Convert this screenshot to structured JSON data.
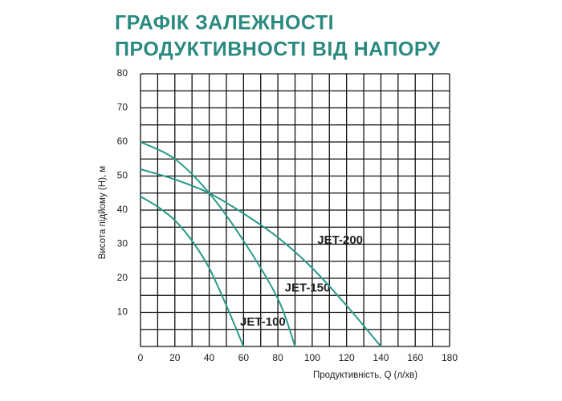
{
  "chart_data": {
    "type": "line",
    "title": [
      "ГРАФІК ЗАЛЕЖНОСТІ",
      "ПРОДУКТИВНОСТІ ВІД НАПОРУ"
    ],
    "x_label": "Продуктивність, Q (л/хв)",
    "y_label": "Висота підйому (Н), м",
    "xlim": [
      0,
      180
    ],
    "ylim": [
      0,
      80
    ],
    "xticks": [
      0,
      20,
      40,
      60,
      80,
      100,
      120,
      140,
      160,
      180
    ],
    "yticks": [
      10,
      20,
      30,
      40,
      50,
      60,
      70,
      80
    ],
    "xgrid": [
      0,
      10,
      20,
      30,
      40,
      50,
      60,
      70,
      80,
      90,
      100,
      110,
      120,
      130,
      140,
      150,
      160,
      170,
      180
    ],
    "ygrid": [
      0,
      5,
      10,
      15,
      20,
      25,
      30,
      35,
      40,
      45,
      50,
      55,
      60,
      65,
      70,
      75,
      80
    ],
    "grid": true,
    "series": [
      {
        "name": "JET-100",
        "color": "#2a9a8a",
        "x": [
          0,
          10,
          20,
          30,
          40,
          50,
          60
        ],
        "values": [
          44,
          41,
          37,
          31,
          23,
          12,
          0
        ]
      },
      {
        "name": "JET-150",
        "color": "#2a9a8a",
        "x": [
          0,
          20,
          40,
          60,
          80,
          90
        ],
        "values": [
          60,
          55,
          45,
          31,
          14,
          0
        ]
      },
      {
        "name": "JET-200",
        "color": "#2a9a8a",
        "x": [
          0,
          20,
          40,
          60,
          80,
          100,
          120,
          140
        ],
        "values": [
          52,
          49,
          45,
          39,
          32,
          23,
          12,
          0
        ]
      }
    ]
  }
}
